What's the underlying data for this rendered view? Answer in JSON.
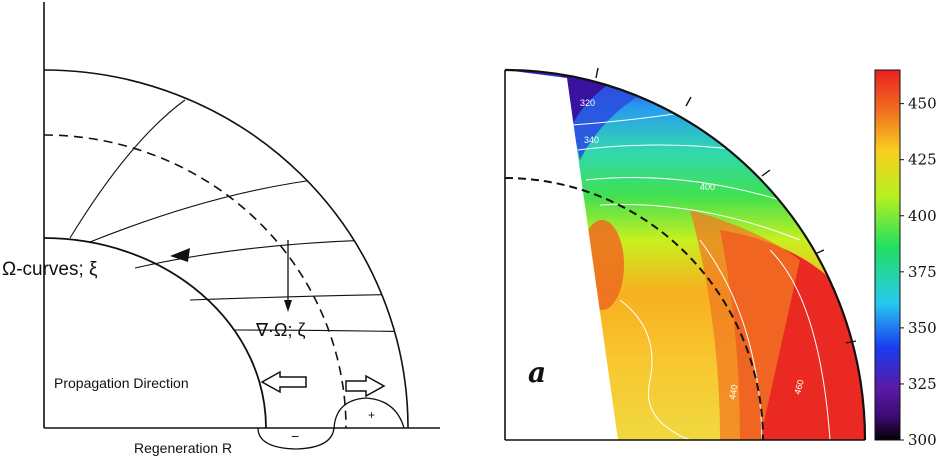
{
  "left_panel": {
    "omega_label": "Ω-curves; ξ",
    "gradient_label": "∇·Ω; ζ",
    "propagation_label": "Propagation Direction",
    "regeneration_label": "Regeneration R",
    "minus_sign": "−",
    "plus_sign": "+"
  },
  "right_panel": {
    "panel_letter": "a",
    "colorbar": {
      "ticks": [
        "450",
        "425",
        "400",
        "375",
        "350",
        "325",
        "300"
      ],
      "min": 300,
      "max": 465,
      "colors": [
        "#000000",
        "#5a1aa8",
        "#1a3cf0",
        "#28c8f0",
        "#20e060",
        "#b8f020",
        "#f8d020",
        "#f07020",
        "#e82020"
      ]
    },
    "contour_labels": [
      "320",
      "340",
      "400",
      "440",
      "460"
    ]
  }
}
